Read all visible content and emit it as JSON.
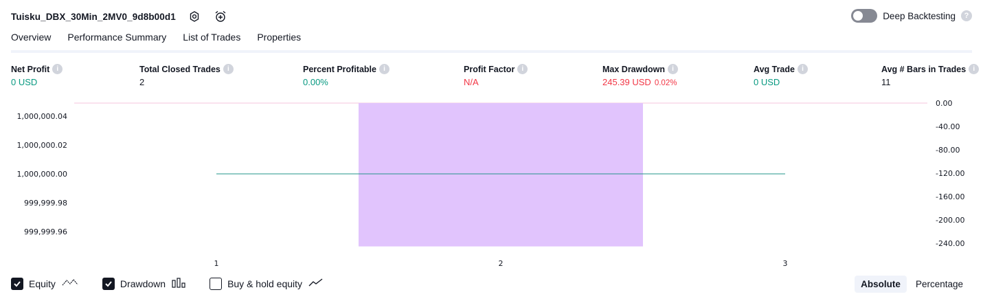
{
  "header": {
    "strategy_name": "Tuisku_DBX_30Min_2MV0_9d8b00d1",
    "settings_icon": "gear-icon",
    "alert_icon": "alarm-clock-plus-icon",
    "deep_backtesting_label": "Deep Backtesting",
    "deep_backtesting_on": false,
    "help_icon_text": "?"
  },
  "tabs": [
    {
      "label": "Overview",
      "active": true
    },
    {
      "label": "Performance Summary",
      "active": false
    },
    {
      "label": "List of Trades",
      "active": false
    },
    {
      "label": "Properties",
      "active": false
    }
  ],
  "metrics": {
    "info_glyph": "i",
    "net_profit": {
      "label": "Net Profit",
      "value": "0 USD"
    },
    "total_closed_trades": {
      "label": "Total Closed Trades",
      "value": "2"
    },
    "percent_profitable": {
      "label": "Percent Profitable",
      "value": "0.00%"
    },
    "profit_factor": {
      "label": "Profit Factor",
      "value": "N/A"
    },
    "max_drawdown": {
      "label": "Max Drawdown",
      "value": "245.39 USD",
      "pct": "0.02%"
    },
    "avg_trade": {
      "label": "Avg Trade",
      "value": "0 USD"
    },
    "avg_bars": {
      "label": "Avg # Bars in Trades",
      "value": "11"
    }
  },
  "colors": {
    "positive": "#089981",
    "negative": "#f23645",
    "drawdown_fill": "#e1c4fd",
    "equity_line": "#22948a",
    "zero_line": "#f5c6dc"
  },
  "chart_data": {
    "type": "bar",
    "x": [
      1,
      2,
      3
    ],
    "x_tick_labels": [
      "1",
      "2",
      "3"
    ],
    "equity": {
      "name": "Equity",
      "values": [
        1000000.0,
        1000000.0,
        1000000.0
      ],
      "ylim": [
        999999.95,
        1000000.05
      ],
      "ticks": [
        "1,000,000.04",
        "1,000,000.02",
        "1,000,000.00",
        "999,999.98",
        "999,999.96"
      ]
    },
    "drawdown": {
      "name": "Drawdown",
      "trade_index": 2,
      "value": -245.39,
      "ylim": [
        -245.39,
        0
      ],
      "ticks": [
        "0.00",
        "-40.00",
        "-80.00",
        "-120.00",
        "-160.00",
        "-200.00",
        "-240.00"
      ]
    }
  },
  "legend": {
    "items": [
      {
        "label": "Equity",
        "checked": true,
        "icon": "equity-line-icon"
      },
      {
        "label": "Drawdown",
        "checked": true,
        "icon": "drawdown-bars-icon"
      },
      {
        "label": "Buy & hold equity",
        "checked": false,
        "icon": "buy-hold-line-icon"
      }
    ],
    "modes": [
      {
        "label": "Absolute",
        "selected": true
      },
      {
        "label": "Percentage",
        "selected": false
      }
    ]
  }
}
